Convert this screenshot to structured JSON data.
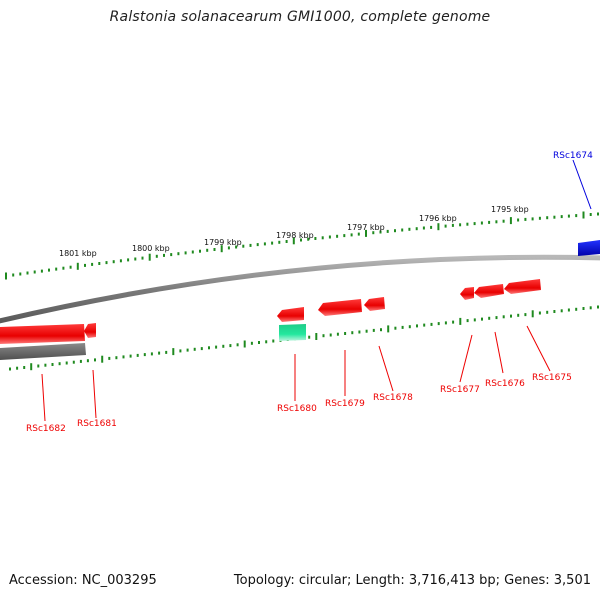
{
  "title": "Ralstonia solanacearum GMI1000, complete genome",
  "footer": {
    "accession": "Accession: NC_003295",
    "info": "Topology: circular; Length: 3,716,413 bp; Genes: 3,501"
  },
  "colors": {
    "background": "#ffffff",
    "backbone": "#888888",
    "tick": "#1f8a1f",
    "forward_gene": "#ee0000",
    "reverse_gene": "#ee0000",
    "selected_gene": "#0000dd",
    "rna_gene": "#22dd99",
    "pseudo_bar": "#6b6b6b"
  },
  "scale_labels": [
    {
      "text": "1801 kbp"
    },
    {
      "text": "1800 kbp"
    },
    {
      "text": "1799 kbp"
    },
    {
      "text": "1798 kbp"
    },
    {
      "text": "1797 kbp"
    },
    {
      "text": "1796 kbp"
    },
    {
      "text": "1795 kbp"
    }
  ],
  "genes": [
    {
      "name": "RSc1674",
      "color": "blue"
    },
    {
      "name": "RSc1675",
      "color": "red"
    },
    {
      "name": "RSc1676",
      "color": "red"
    },
    {
      "name": "RSc1677",
      "color": "red"
    },
    {
      "name": "RSc1678",
      "color": "red"
    },
    {
      "name": "RSc1679",
      "color": "red"
    },
    {
      "name": "RSc1680",
      "color": "red"
    },
    {
      "name": "RSc1681",
      "color": "red"
    },
    {
      "name": "RSc1682",
      "color": "red"
    }
  ]
}
